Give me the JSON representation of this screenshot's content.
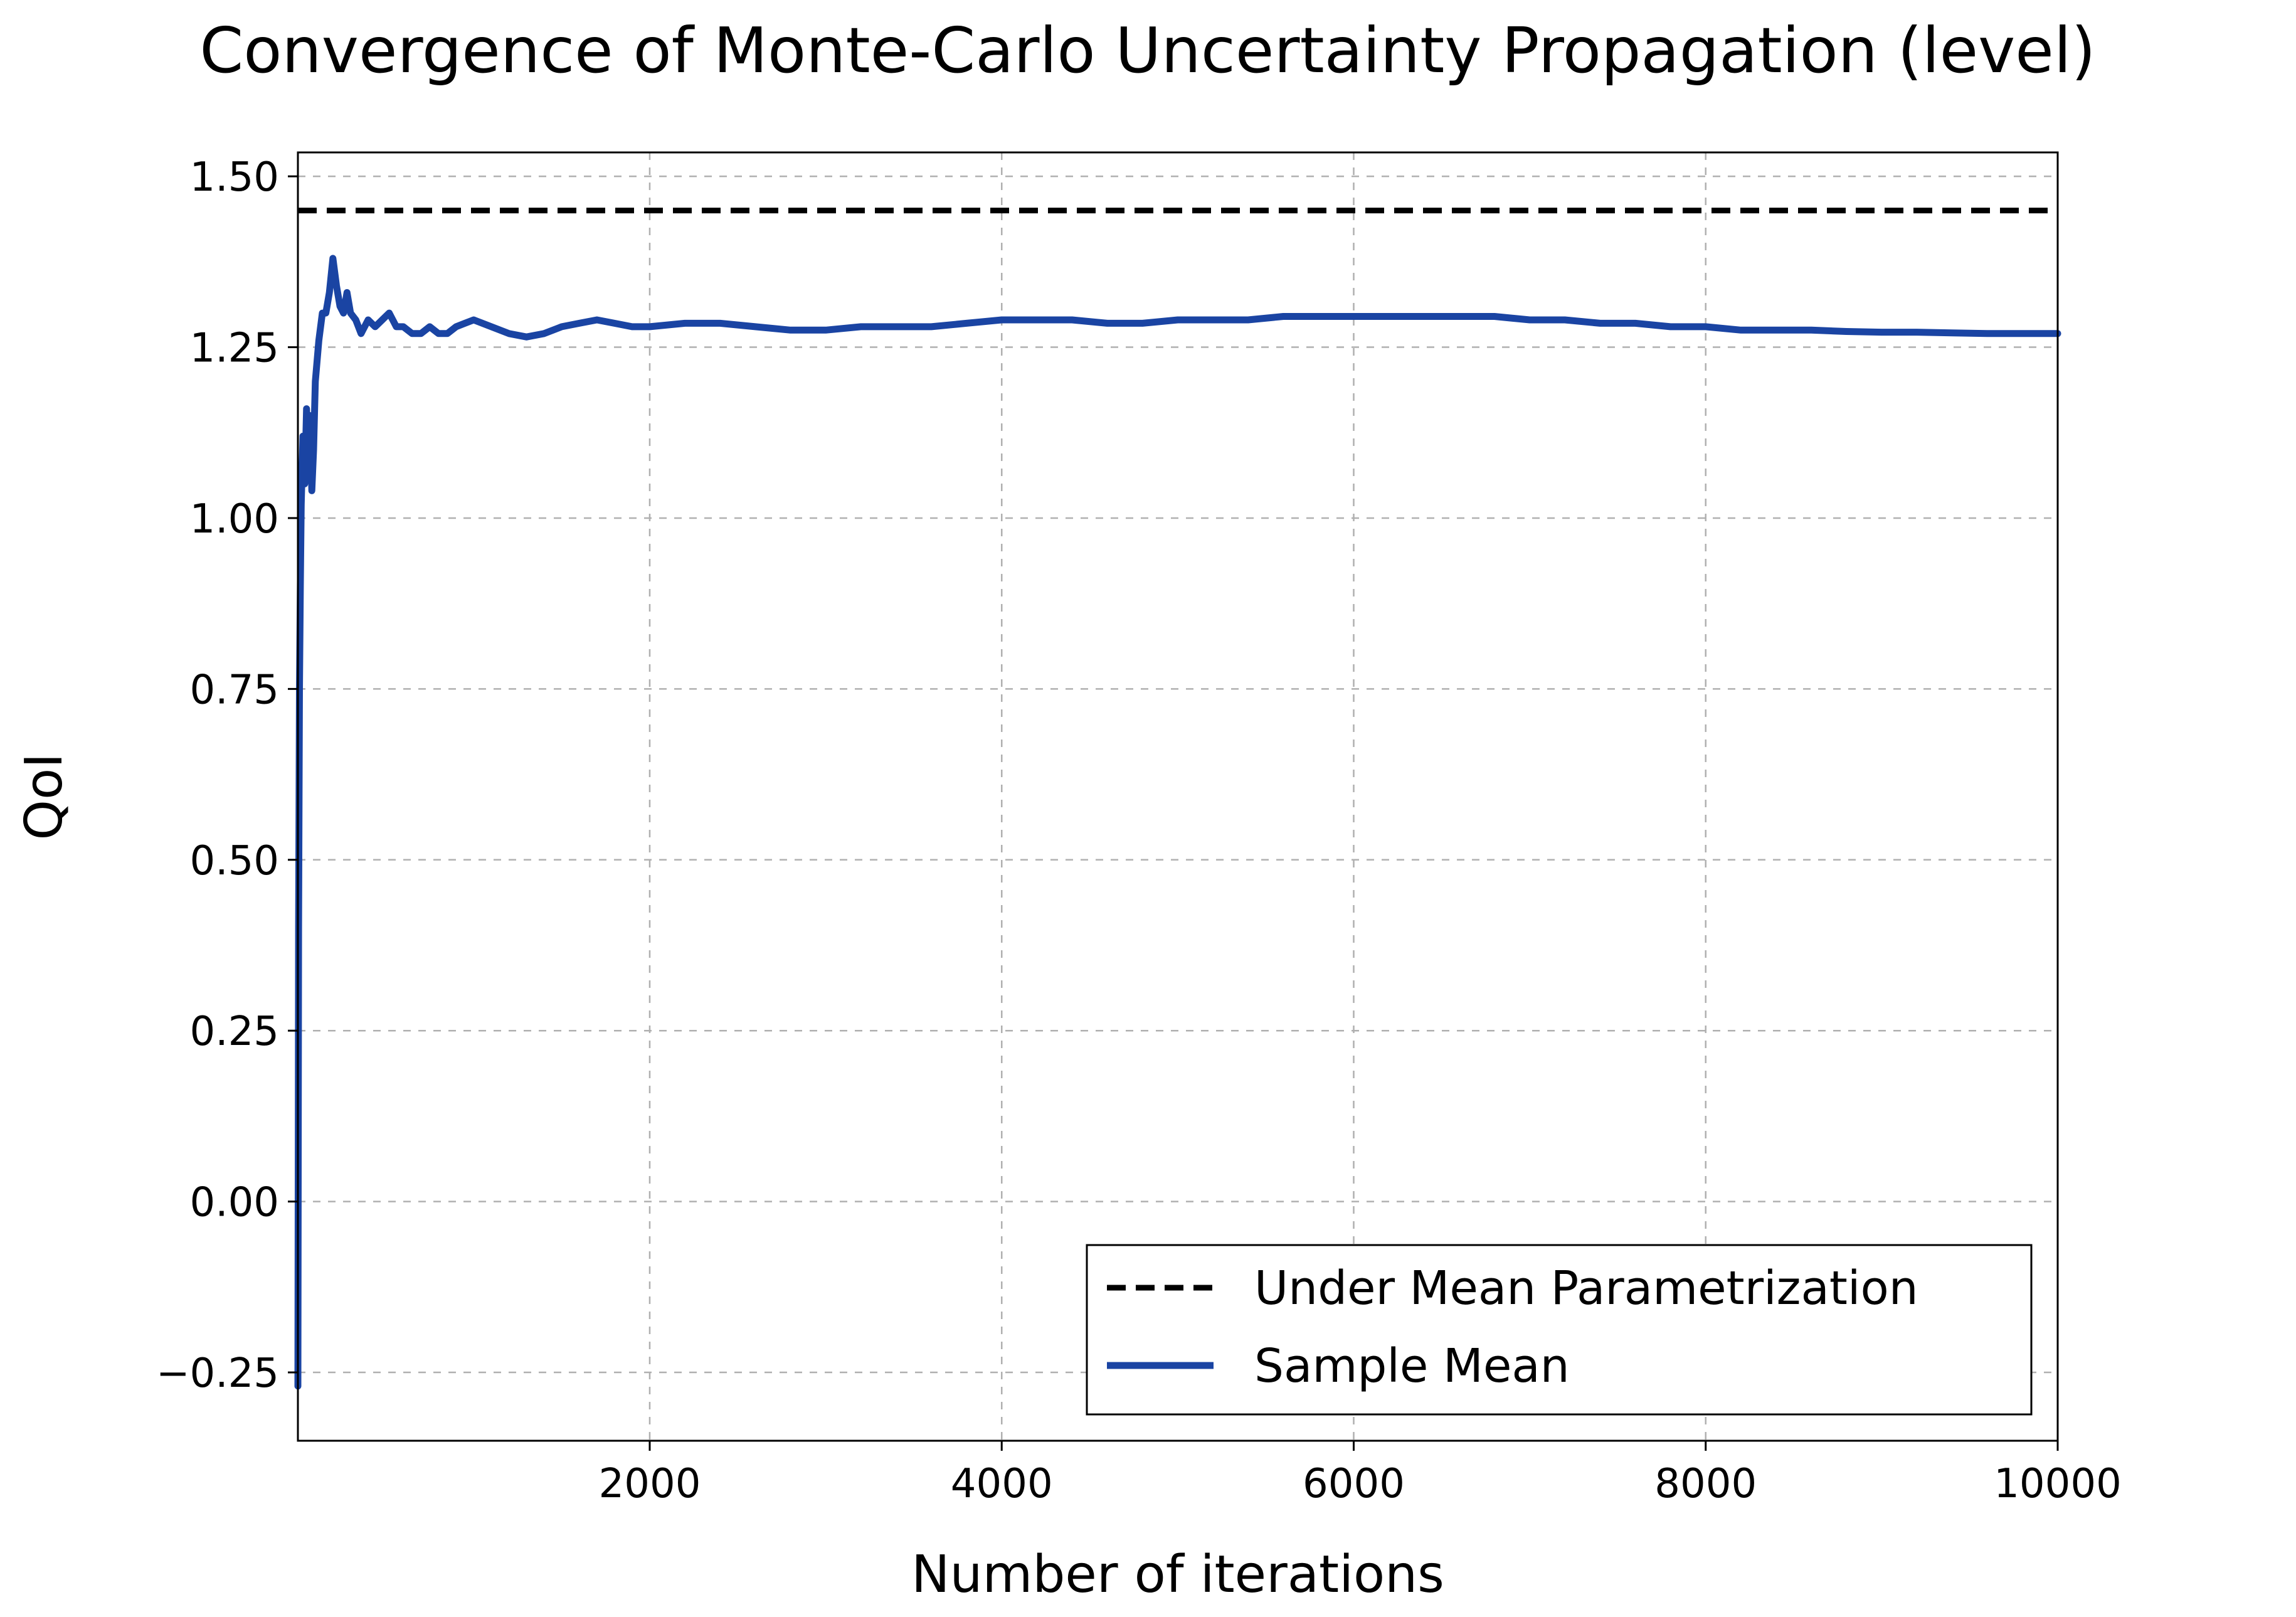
{
  "chart_data": {
    "type": "line",
    "title": "Convergence of Monte-Carlo Uncertainty Propagation (level)",
    "xlabel": "Number of iterations",
    "ylabel": "QoI",
    "xlim": [
      1,
      10000
    ],
    "ylim": [
      -0.35,
      1.535
    ],
    "xticks": [
      2000,
      4000,
      6000,
      8000,
      10000
    ],
    "xtick_labels": [
      "2000",
      "4000",
      "6000",
      "8000",
      "10000"
    ],
    "yticks": [
      -0.25,
      0,
      0.25,
      0.5,
      0.75,
      1.0,
      1.25,
      1.5
    ],
    "ytick_labels": [
      "−0.25",
      "0.00",
      "0.25",
      "0.50",
      "0.75",
      "1.00",
      "1.25",
      "1.50"
    ],
    "grid": true,
    "legend_position": "lower-right",
    "series": [
      {
        "name": "Under Mean Parametrization",
        "style": "dashed",
        "color": "#000000",
        "x": [
          1,
          10000
        ],
        "y": [
          1.45,
          1.45
        ]
      },
      {
        "name": "Sample Mean",
        "style": "solid",
        "color": "#1a44a3",
        "x": [
          1,
          5,
          10,
          15,
          20,
          30,
          40,
          50,
          60,
          70,
          80,
          90,
          100,
          120,
          140,
          160,
          180,
          200,
          220,
          240,
          260,
          280,
          300,
          330,
          360,
          400,
          440,
          480,
          520,
          560,
          600,
          650,
          700,
          750,
          800,
          850,
          900,
          950,
          1000,
          1100,
          1200,
          1300,
          1400,
          1500,
          1600,
          1700,
          1800,
          1900,
          2000,
          2200,
          2400,
          2600,
          2800,
          3000,
          3200,
          3400,
          3600,
          3800,
          4000,
          4200,
          4400,
          4600,
          4800,
          5000,
          5200,
          5400,
          5600,
          5800,
          6000,
          6200,
          6400,
          6600,
          6800,
          7000,
          7200,
          7400,
          7600,
          7800,
          8000,
          8200,
          8400,
          8600,
          8800,
          9000,
          9200,
          9400,
          9600,
          9800,
          10000
        ],
        "y": [
          -0.27,
          0.4,
          0.75,
          0.9,
          1.02,
          1.12,
          1.05,
          1.16,
          1.08,
          1.15,
          1.04,
          1.1,
          1.2,
          1.26,
          1.3,
          1.3,
          1.33,
          1.38,
          1.34,
          1.31,
          1.3,
          1.33,
          1.3,
          1.29,
          1.27,
          1.29,
          1.28,
          1.29,
          1.3,
          1.28,
          1.28,
          1.27,
          1.27,
          1.28,
          1.27,
          1.27,
          1.28,
          1.285,
          1.29,
          1.28,
          1.27,
          1.265,
          1.27,
          1.28,
          1.285,
          1.29,
          1.285,
          1.28,
          1.28,
          1.285,
          1.285,
          1.28,
          1.275,
          1.275,
          1.28,
          1.28,
          1.28,
          1.285,
          1.29,
          1.29,
          1.29,
          1.285,
          1.285,
          1.29,
          1.29,
          1.29,
          1.295,
          1.295,
          1.295,
          1.295,
          1.295,
          1.295,
          1.295,
          1.29,
          1.29,
          1.285,
          1.285,
          1.28,
          1.28,
          1.275,
          1.275,
          1.275,
          1.273,
          1.272,
          1.272,
          1.271,
          1.27,
          1.27,
          1.27
        ]
      }
    ]
  },
  "colors": {
    "sample_mean": "#1a44a3",
    "reference": "#000000",
    "grid": "#b0b0b0"
  }
}
